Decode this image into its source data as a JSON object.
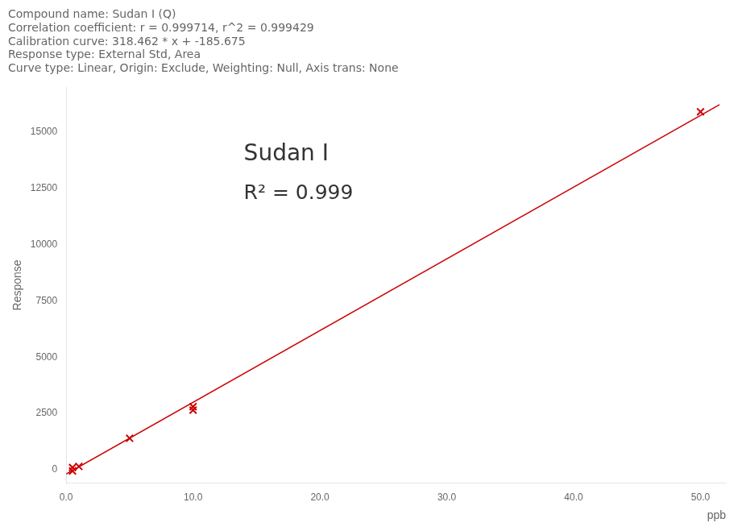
{
  "chart_data": {
    "type": "scatter",
    "title": [
      "Compound name: Sudan I (Q)",
      "Correlation coefficient: r = 0.999714, r^2 = 0.999429",
      "Calibration curve: 318.462 * x + -185.675",
      "Response type: External Std, Area",
      "Curve type: Linear, Origin: Exclude, Weighting: Null, Axis trans: None"
    ],
    "xlabel": "ppb",
    "ylabel": "Response",
    "series": [
      {
        "type": "line",
        "color": "#CC0000",
        "line_style": "solid",
        "x": [
          0.0,
          51.5
        ],
        "values": [
          -185.675,
          16215.118
        ]
      },
      {
        "type": "scatter",
        "color": "#CC0000",
        "marker": "x",
        "x": [
          0.5,
          0.5,
          1.0,
          5.0,
          10.0,
          10.0,
          50.0
        ],
        "values": [
          100,
          -50,
          150,
          1400,
          2800,
          2650,
          15900
        ]
      }
    ],
    "xlim": [
      0.0,
      52.0
    ],
    "ylim": [
      -600,
      17000
    ],
    "xticks": [
      {
        "value": 0.0,
        "label": "0.0"
      },
      {
        "value": 10.0,
        "label": "10.0"
      },
      {
        "value": 20.0,
        "label": "20.0"
      },
      {
        "value": 30.0,
        "label": "30.0"
      },
      {
        "value": 40.0,
        "label": "40.0"
      },
      {
        "value": 50.0,
        "label": "50.0"
      }
    ],
    "yticks": [
      0,
      2500,
      5000,
      7500,
      10000,
      12500,
      15000
    ],
    "annotations": [
      {
        "text": "Sudan I",
        "x": 14,
        "y": 14500
      },
      {
        "text": "R² = 0.999",
        "x": 14,
        "y": 12700
      }
    ],
    "grid": false
  }
}
